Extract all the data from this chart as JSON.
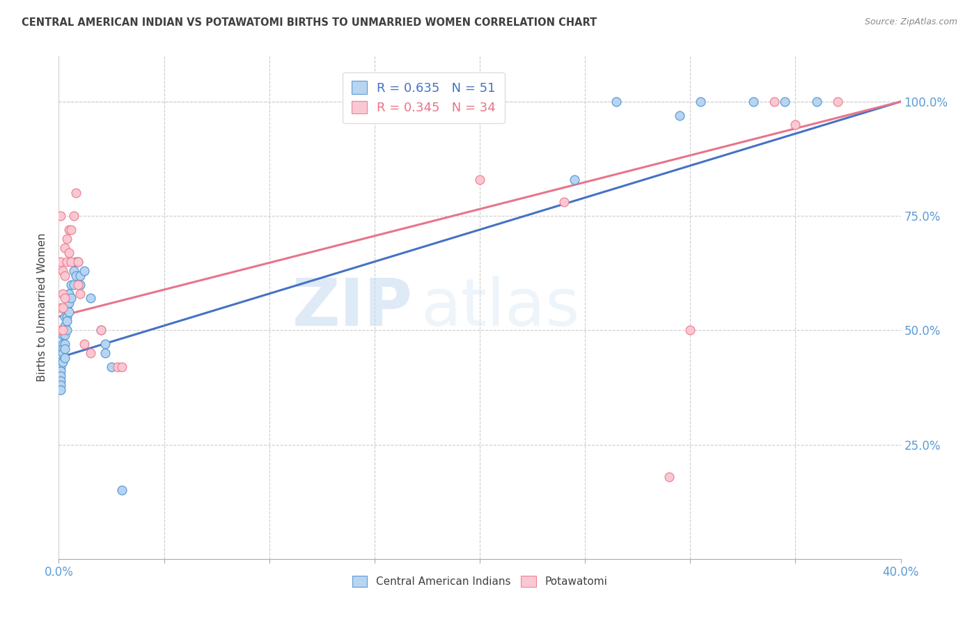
{
  "title": "CENTRAL AMERICAN INDIAN VS POTAWATOMI BIRTHS TO UNMARRIED WOMEN CORRELATION CHART",
  "source": "Source: ZipAtlas.com",
  "ylabel": "Births to Unmarried Women",
  "blue_R": 0.635,
  "blue_N": 51,
  "pink_R": 0.345,
  "pink_N": 34,
  "watermark_zip": "ZIP",
  "watermark_atlas": "atlas",
  "legend_blue": "Central American Indians",
  "legend_pink": "Potawatomi",
  "blue_fill": "#B8D4F0",
  "pink_fill": "#F9C8D4",
  "blue_edge": "#5B9BD5",
  "pink_edge": "#F0828F",
  "blue_line": "#4472C4",
  "pink_line": "#E8748A",
  "title_color": "#404040",
  "source_color": "#888888",
  "tick_color": "#5B9BD5",
  "grid_color": "#CCCCCC",
  "bg_color": "#FFFFFF",
  "xlim": [
    0.0,
    0.4
  ],
  "ylim": [
    0.0,
    1.1
  ],
  "ytick_values": [
    0.25,
    0.5,
    0.75,
    1.0
  ],
  "ytick_labels": [
    "25.0%",
    "50.0%",
    "75.0%",
    "100.0%"
  ],
  "xtick_positions": [
    0.0,
    0.05,
    0.1,
    0.15,
    0.2,
    0.25,
    0.3,
    0.35,
    0.4
  ],
  "blue_x": [
    0.001,
    0.001,
    0.001,
    0.001,
    0.001,
    0.001,
    0.001,
    0.001,
    0.002,
    0.002,
    0.002,
    0.002,
    0.002,
    0.002,
    0.003,
    0.003,
    0.003,
    0.003,
    0.003,
    0.003,
    0.003,
    0.004,
    0.004,
    0.004,
    0.004,
    0.005,
    0.005,
    0.005,
    0.006,
    0.006,
    0.007,
    0.007,
    0.008,
    0.008,
    0.009,
    0.01,
    0.01,
    0.012,
    0.015,
    0.02,
    0.022,
    0.022,
    0.025,
    0.03,
    0.245,
    0.265,
    0.295,
    0.305,
    0.33,
    0.345,
    0.36
  ],
  "blue_y": [
    0.44,
    0.43,
    0.42,
    0.41,
    0.4,
    0.39,
    0.38,
    0.37,
    0.5,
    0.49,
    0.47,
    0.46,
    0.45,
    0.43,
    0.53,
    0.51,
    0.5,
    0.49,
    0.47,
    0.46,
    0.44,
    0.55,
    0.53,
    0.52,
    0.5,
    0.58,
    0.56,
    0.54,
    0.6,
    0.57,
    0.63,
    0.6,
    0.65,
    0.62,
    0.65,
    0.62,
    0.6,
    0.63,
    0.57,
    0.5,
    0.47,
    0.45,
    0.42,
    0.15,
    0.83,
    1.0,
    0.97,
    1.0,
    1.0,
    1.0,
    1.0
  ],
  "pink_x": [
    0.001,
    0.001,
    0.001,
    0.001,
    0.002,
    0.002,
    0.002,
    0.002,
    0.003,
    0.003,
    0.003,
    0.004,
    0.004,
    0.005,
    0.005,
    0.006,
    0.006,
    0.007,
    0.008,
    0.009,
    0.009,
    0.01,
    0.012,
    0.015,
    0.02,
    0.028,
    0.03,
    0.2,
    0.24,
    0.29,
    0.3,
    0.34,
    0.35,
    0.37
  ],
  "pink_y": [
    0.75,
    0.65,
    0.55,
    0.5,
    0.63,
    0.58,
    0.55,
    0.5,
    0.68,
    0.62,
    0.57,
    0.7,
    0.65,
    0.72,
    0.67,
    0.72,
    0.65,
    0.75,
    0.8,
    0.65,
    0.6,
    0.58,
    0.47,
    0.45,
    0.5,
    0.42,
    0.42,
    0.83,
    0.78,
    0.18,
    0.5,
    1.0,
    0.95,
    1.0
  ],
  "blue_line_x0": 0.0,
  "blue_line_x1": 0.4,
  "blue_line_y0": 0.44,
  "blue_line_y1": 1.0,
  "pink_line_x0": 0.0,
  "pink_line_x1": 0.4,
  "pink_line_y0": 0.53,
  "pink_line_y1": 1.0
}
